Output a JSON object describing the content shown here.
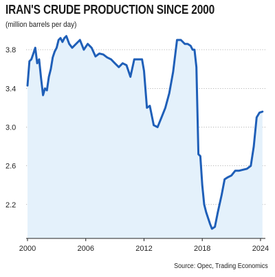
{
  "header": {
    "title": "IRAN'S CRUDE PRODUCTION SINCE 2000",
    "subtitle": "(million barrels per day)"
  },
  "footer": {
    "source": "Source: Opec, Trading Economics"
  },
  "colors": {
    "line": "#1f5fb8",
    "area": "#e4f1fb",
    "grid": "#8a8a8a",
    "axis": "#222222"
  },
  "chart_data": {
    "type": "area",
    "title": "IRAN'S CRUDE PRODUCTION SINCE 2000",
    "ylabel": "(million barrels per day)",
    "xlabel": "",
    "xlim": [
      2000,
      2024.5
    ],
    "ylim": [
      1.85,
      4.0
    ],
    "grid": true,
    "x_ticks": [
      2000,
      2006,
      2012,
      2018,
      2024
    ],
    "x_tick_labels": [
      "2000",
      "2006",
      "2012",
      "2018",
      "2024"
    ],
    "y_ticks": [
      2.2,
      2.6,
      3.0,
      3.4,
      3.8
    ],
    "y_tick_labels": [
      "2.2",
      "2.6",
      "3.0",
      "3.4",
      "3.8"
    ],
    "series": [
      {
        "x": [
          2000.0,
          2000.2,
          2000.4,
          2000.6,
          2000.8,
          2001.0,
          2001.2,
          2001.4,
          2001.6,
          2001.8,
          2002.0,
          2002.2,
          2002.4,
          2002.6,
          2002.8,
          2003.0,
          2003.2,
          2003.4,
          2003.6,
          2003.8,
          2004.0,
          2004.3,
          2004.6,
          2005.0,
          2005.4,
          2005.8,
          2006.2,
          2006.6,
          2007.0,
          2007.4,
          2007.8,
          2008.2,
          2008.6,
          2009.0,
          2009.4,
          2009.8,
          2010.2,
          2010.6,
          2011.0,
          2011.4,
          2011.8,
          2012.0,
          2012.3,
          2012.6,
          2013.0,
          2013.4,
          2013.8,
          2014.2,
          2014.6,
          2015.0,
          2015.4,
          2015.8,
          2016.2,
          2016.5,
          2016.8,
          2017.0,
          2017.2,
          2017.4,
          2017.6,
          2017.8,
          2018.0,
          2018.2,
          2018.4,
          2018.6,
          2018.8,
          2019.0,
          2019.3,
          2019.6,
          2020.0,
          2020.3,
          2020.6,
          2021.0,
          2021.4,
          2021.8,
          2022.2,
          2022.6,
          2023.0,
          2023.3,
          2023.6,
          2023.9,
          2024.2
        ],
        "y": [
          3.43,
          3.68,
          3.7,
          3.76,
          3.82,
          3.66,
          3.7,
          3.5,
          3.33,
          3.4,
          3.38,
          3.52,
          3.6,
          3.72,
          3.78,
          3.82,
          3.9,
          3.92,
          3.88,
          3.92,
          3.94,
          3.86,
          3.82,
          3.86,
          3.9,
          3.8,
          3.86,
          3.82,
          3.73,
          3.76,
          3.75,
          3.72,
          3.7,
          3.66,
          3.62,
          3.66,
          3.64,
          3.52,
          3.7,
          3.7,
          3.7,
          3.58,
          3.2,
          3.22,
          3.02,
          3.0,
          3.1,
          3.2,
          3.35,
          3.57,
          3.9,
          3.9,
          3.86,
          3.86,
          3.84,
          3.8,
          3.8,
          3.62,
          2.72,
          2.7,
          2.4,
          2.2,
          2.12,
          2.06,
          2.0,
          1.95,
          1.97,
          2.12,
          2.3,
          2.46,
          2.48,
          2.5,
          2.55,
          2.55,
          2.56,
          2.57,
          2.6,
          2.8,
          3.1,
          3.15,
          3.16
        ]
      }
    ],
    "annotations": [
      "Source: Opec, Trading Economics"
    ]
  }
}
